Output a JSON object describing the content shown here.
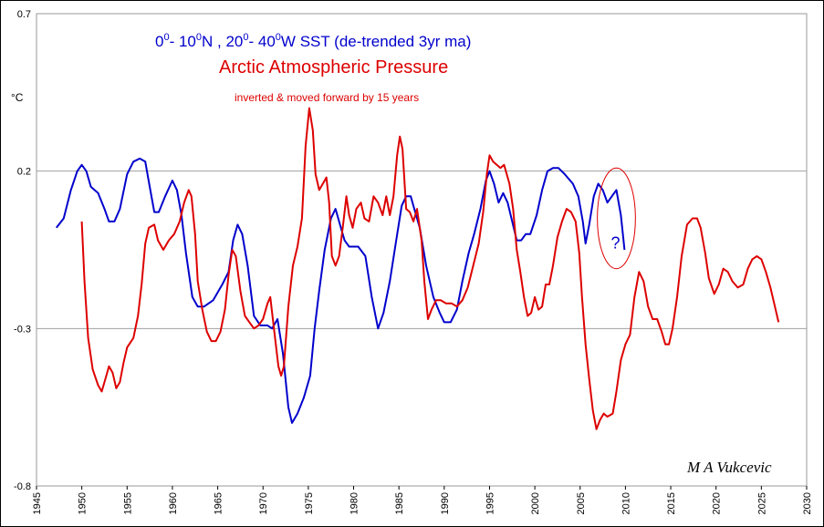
{
  "chart_data": {
    "type": "line",
    "title_line1": {
      "seg1": "0",
      "sup1": "0",
      "seg2": "- 10",
      "sup2": "0",
      "seg3": "N ,  20",
      "sup3": "0",
      "seg4": "- 40",
      "sup4": "0",
      "seg5": "W SST (de-trended 3yr ma)"
    },
    "title_line2": "Arctic Atmospheric Pressure",
    "subtitle": "inverted &  moved forward by 15 years",
    "ylabel": "°C",
    "signature": "M A Vukcevic",
    "annotation": "?",
    "xlim": [
      1945,
      2030
    ],
    "ylim": [
      -0.8,
      0.7
    ],
    "x_ticks": [
      1945,
      1950,
      1955,
      1960,
      1965,
      1970,
      1975,
      1980,
      1985,
      1990,
      1995,
      2000,
      2005,
      2010,
      2015,
      2020,
      2025,
      2030
    ],
    "y_ticks": [
      0.7,
      0.2,
      -0.3,
      -0.8
    ],
    "y_tick_labels": [
      "0.7",
      "0.2",
      "-0.3",
      "-0.8"
    ],
    "gridlines_y": [
      0.2,
      -0.3
    ],
    "annotation_ellipse": {
      "center_x": 2009,
      "center_y": 0.05,
      "rx_years": 2.1,
      "ry_units": 0.16
    },
    "series": [
      {
        "color": "#0000cc",
        "points": [
          [
            1947.2,
            0.02
          ],
          [
            1948,
            0.05
          ],
          [
            1948.8,
            0.14
          ],
          [
            1949.5,
            0.2
          ],
          [
            1950,
            0.22
          ],
          [
            1950.5,
            0.2
          ],
          [
            1951,
            0.15
          ],
          [
            1951.8,
            0.13
          ],
          [
            1952.5,
            0.08
          ],
          [
            1953,
            0.04
          ],
          [
            1953.6,
            0.04
          ],
          [
            1954.2,
            0.08
          ],
          [
            1955,
            0.19
          ],
          [
            1955.7,
            0.23
          ],
          [
            1956.4,
            0.24
          ],
          [
            1957,
            0.23
          ],
          [
            1957.5,
            0.15
          ],
          [
            1958,
            0.07
          ],
          [
            1958.5,
            0.07
          ],
          [
            1959.2,
            0.12
          ],
          [
            1960,
            0.17
          ],
          [
            1960.5,
            0.14
          ],
          [
            1961,
            0.06
          ],
          [
            1961.5,
            -0.06
          ],
          [
            1962.2,
            -0.2
          ],
          [
            1962.8,
            -0.23
          ],
          [
            1963.5,
            -0.23
          ],
          [
            1964.5,
            -0.21
          ],
          [
            1965.5,
            -0.16
          ],
          [
            1966.2,
            -0.12
          ],
          [
            1966.7,
            -0.02
          ],
          [
            1967.2,
            0.03
          ],
          [
            1967.7,
            0.0
          ],
          [
            1968.3,
            -0.1
          ],
          [
            1969,
            -0.26
          ],
          [
            1969.7,
            -0.29
          ],
          [
            1970.5,
            -0.29
          ],
          [
            1971,
            -0.3
          ],
          [
            1971.6,
            -0.27
          ],
          [
            1972.2,
            -0.38
          ],
          [
            1972.8,
            -0.55
          ],
          [
            1973.2,
            -0.6
          ],
          [
            1973.8,
            -0.57
          ],
          [
            1974.5,
            -0.52
          ],
          [
            1975.2,
            -0.45
          ],
          [
            1975.7,
            -0.3
          ],
          [
            1976.2,
            -0.18
          ],
          [
            1976.8,
            -0.05
          ],
          [
            1977.5,
            0.05
          ],
          [
            1978,
            0.08
          ],
          [
            1978.5,
            0.03
          ],
          [
            1979,
            -0.02
          ],
          [
            1979.5,
            -0.04
          ],
          [
            1980.5,
            -0.04
          ],
          [
            1981.3,
            -0.07
          ],
          [
            1982,
            -0.2
          ],
          [
            1982.7,
            -0.3
          ],
          [
            1983.3,
            -0.25
          ],
          [
            1984,
            -0.15
          ],
          [
            1984.7,
            -0.02
          ],
          [
            1985.3,
            0.09
          ],
          [
            1985.8,
            0.12
          ],
          [
            1986.3,
            0.12
          ],
          [
            1986.8,
            0.07
          ],
          [
            1987.3,
            0.02
          ],
          [
            1988,
            -0.1
          ],
          [
            1988.8,
            -0.2
          ],
          [
            1989.5,
            -0.25
          ],
          [
            1990,
            -0.28
          ],
          [
            1990.7,
            -0.28
          ],
          [
            1991.4,
            -0.24
          ],
          [
            1992,
            -0.15
          ],
          [
            1992.7,
            -0.06
          ],
          [
            1993.3,
            0.0
          ],
          [
            1994,
            0.08
          ],
          [
            1994.6,
            0.17
          ],
          [
            1995,
            0.2
          ],
          [
            1995.5,
            0.16
          ],
          [
            1996,
            0.1
          ],
          [
            1996.5,
            0.13
          ],
          [
            1997,
            0.1
          ],
          [
            1997.5,
            0.04
          ],
          [
            1998,
            -0.02
          ],
          [
            1998.5,
            -0.02
          ],
          [
            1999,
            0.0
          ],
          [
            1999.5,
            0.0
          ],
          [
            2000.2,
            0.06
          ],
          [
            2000.8,
            0.14
          ],
          [
            2001.4,
            0.2
          ],
          [
            2002,
            0.21
          ],
          [
            2002.6,
            0.21
          ],
          [
            2003.3,
            0.19
          ],
          [
            2004.2,
            0.16
          ],
          [
            2004.8,
            0.12
          ],
          [
            2005.3,
            0.04
          ],
          [
            2005.6,
            -0.03
          ],
          [
            2006,
            0.03
          ],
          [
            2006.5,
            0.12
          ],
          [
            2007,
            0.16
          ],
          [
            2007.5,
            0.14
          ],
          [
            2008,
            0.1
          ],
          [
            2008.5,
            0.12
          ],
          [
            2009,
            0.14
          ],
          [
            2009.5,
            0.06
          ],
          [
            2009.9,
            -0.05
          ]
        ]
      },
      {
        "color": "#dd0000",
        "points": [
          [
            1950,
            0.04
          ],
          [
            1950.3,
            -0.15
          ],
          [
            1950.7,
            -0.33
          ],
          [
            1951.2,
            -0.43
          ],
          [
            1951.8,
            -0.48
          ],
          [
            1952.2,
            -0.5
          ],
          [
            1952.6,
            -0.46
          ],
          [
            1953,
            -0.42
          ],
          [
            1953.4,
            -0.44
          ],
          [
            1953.8,
            -0.49
          ],
          [
            1954.2,
            -0.47
          ],
          [
            1954.6,
            -0.41
          ],
          [
            1955,
            -0.36
          ],
          [
            1955.7,
            -0.33
          ],
          [
            1956.2,
            -0.26
          ],
          [
            1956.6,
            -0.16
          ],
          [
            1957,
            -0.03
          ],
          [
            1957.4,
            0.02
          ],
          [
            1958,
            0.03
          ],
          [
            1958.4,
            -0.02
          ],
          [
            1959,
            -0.05
          ],
          [
            1959.6,
            -0.02
          ],
          [
            1960.2,
            0.0
          ],
          [
            1960.8,
            0.04
          ],
          [
            1961.3,
            0.1
          ],
          [
            1961.8,
            0.14
          ],
          [
            1962.1,
            0.12
          ],
          [
            1962.5,
            0.0
          ],
          [
            1962.8,
            -0.15
          ],
          [
            1963.3,
            -0.24
          ],
          [
            1963.8,
            -0.31
          ],
          [
            1964.3,
            -0.34
          ],
          [
            1964.8,
            -0.34
          ],
          [
            1965.3,
            -0.31
          ],
          [
            1965.8,
            -0.24
          ],
          [
            1966.2,
            -0.13
          ],
          [
            1966.6,
            -0.05
          ],
          [
            1967,
            -0.07
          ],
          [
            1967.5,
            -0.18
          ],
          [
            1968,
            -0.26
          ],
          [
            1968.5,
            -0.28
          ],
          [
            1969,
            -0.3
          ],
          [
            1969.5,
            -0.29
          ],
          [
            1970,
            -0.27
          ],
          [
            1970.5,
            -0.22
          ],
          [
            1970.8,
            -0.2
          ],
          [
            1971.2,
            -0.3
          ],
          [
            1971.7,
            -0.42
          ],
          [
            1972,
            -0.45
          ],
          [
            1972.3,
            -0.42
          ],
          [
            1972.8,
            -0.23
          ],
          [
            1973.3,
            -0.1
          ],
          [
            1973.8,
            -0.04
          ],
          [
            1974.3,
            0.05
          ],
          [
            1974.7,
            0.28
          ],
          [
            1975.1,
            0.4
          ],
          [
            1975.5,
            0.33
          ],
          [
            1975.8,
            0.19
          ],
          [
            1976.2,
            0.14
          ],
          [
            1976.6,
            0.16
          ],
          [
            1977,
            0.18
          ],
          [
            1977.3,
            0.1
          ],
          [
            1977.6,
            -0.07
          ],
          [
            1978,
            -0.1
          ],
          [
            1978.4,
            -0.07
          ],
          [
            1978.8,
            0.02
          ],
          [
            1979.2,
            0.12
          ],
          [
            1979.5,
            0.06
          ],
          [
            1979.9,
            0.02
          ],
          [
            1980.3,
            0.08
          ],
          [
            1980.8,
            0.1
          ],
          [
            1981.2,
            0.05
          ],
          [
            1981.7,
            0.04
          ],
          [
            1982.2,
            0.12
          ],
          [
            1982.7,
            0.1
          ],
          [
            1983.2,
            0.06
          ],
          [
            1983.6,
            0.12
          ],
          [
            1984,
            0.06
          ],
          [
            1984.4,
            0.12
          ],
          [
            1984.8,
            0.25
          ],
          [
            1985.1,
            0.31
          ],
          [
            1985.4,
            0.27
          ],
          [
            1985.8,
            0.08
          ],
          [
            1986.2,
            0.07
          ],
          [
            1986.6,
            0.04
          ],
          [
            1987,
            0.08
          ],
          [
            1987.5,
            -0.02
          ],
          [
            1987.8,
            -0.15
          ],
          [
            1988.2,
            -0.27
          ],
          [
            1988.6,
            -0.24
          ],
          [
            1989.1,
            -0.21
          ],
          [
            1989.6,
            -0.21
          ],
          [
            1990.2,
            -0.22
          ],
          [
            1990.8,
            -0.22
          ],
          [
            1991.4,
            -0.23
          ],
          [
            1992,
            -0.21
          ],
          [
            1992.6,
            -0.17
          ],
          [
            1993.2,
            -0.1
          ],
          [
            1993.8,
            -0.03
          ],
          [
            1994.3,
            0.07
          ],
          [
            1994.7,
            0.19
          ],
          [
            1995,
            0.25
          ],
          [
            1995.4,
            0.23
          ],
          [
            1995.8,
            0.22
          ],
          [
            1996.2,
            0.21
          ],
          [
            1996.6,
            0.22
          ],
          [
            1997.2,
            0.16
          ],
          [
            1997.6,
            0.08
          ],
          [
            1998,
            -0.05
          ],
          [
            1998.4,
            -0.12
          ],
          [
            1998.8,
            -0.2
          ],
          [
            1999.2,
            -0.26
          ],
          [
            1999.6,
            -0.25
          ],
          [
            2000,
            -0.2
          ],
          [
            2000.4,
            -0.24
          ],
          [
            2000.8,
            -0.23
          ],
          [
            2001.2,
            -0.16
          ],
          [
            2001.6,
            -0.16
          ],
          [
            2002,
            -0.1
          ],
          [
            2002.5,
            -0.01
          ],
          [
            2003,
            0.04
          ],
          [
            2003.5,
            0.08
          ],
          [
            2004,
            0.07
          ],
          [
            2004.5,
            0.04
          ],
          [
            2004.9,
            -0.06
          ],
          [
            2005.2,
            -0.2
          ],
          [
            2005.6,
            -0.35
          ],
          [
            2006,
            -0.46
          ],
          [
            2006.4,
            -0.56
          ],
          [
            2006.8,
            -0.62
          ],
          [
            2007.2,
            -0.59
          ],
          [
            2007.6,
            -0.57
          ],
          [
            2008,
            -0.58
          ],
          [
            2008.6,
            -0.57
          ],
          [
            2009,
            -0.5
          ],
          [
            2009.5,
            -0.4
          ],
          [
            2010,
            -0.35
          ],
          [
            2010.5,
            -0.32
          ],
          [
            2011,
            -0.2
          ],
          [
            2011.5,
            -0.12
          ],
          [
            2012,
            -0.15
          ],
          [
            2012.5,
            -0.23
          ],
          [
            2013,
            -0.27
          ],
          [
            2013.5,
            -0.27
          ],
          [
            2014,
            -0.31
          ],
          [
            2014.4,
            -0.35
          ],
          [
            2014.8,
            -0.35
          ],
          [
            2015.2,
            -0.3
          ],
          [
            2015.7,
            -0.2
          ],
          [
            2016.2,
            -0.07
          ],
          [
            2016.8,
            0.03
          ],
          [
            2017.4,
            0.05
          ],
          [
            2017.9,
            0.05
          ],
          [
            2018.3,
            0.02
          ],
          [
            2018.8,
            -0.06
          ],
          [
            2019.2,
            -0.14
          ],
          [
            2019.8,
            -0.19
          ],
          [
            2020.3,
            -0.16
          ],
          [
            2020.8,
            -0.11
          ],
          [
            2021.3,
            -0.12
          ],
          [
            2021.8,
            -0.15
          ],
          [
            2022.4,
            -0.17
          ],
          [
            2023,
            -0.16
          ],
          [
            2023.5,
            -0.11
          ],
          [
            2024,
            -0.08
          ],
          [
            2024.5,
            -0.07
          ],
          [
            2025,
            -0.08
          ],
          [
            2025.5,
            -0.12
          ],
          [
            2026,
            -0.17
          ],
          [
            2026.5,
            -0.23
          ],
          [
            2026.9,
            -0.28
          ]
        ]
      }
    ]
  }
}
